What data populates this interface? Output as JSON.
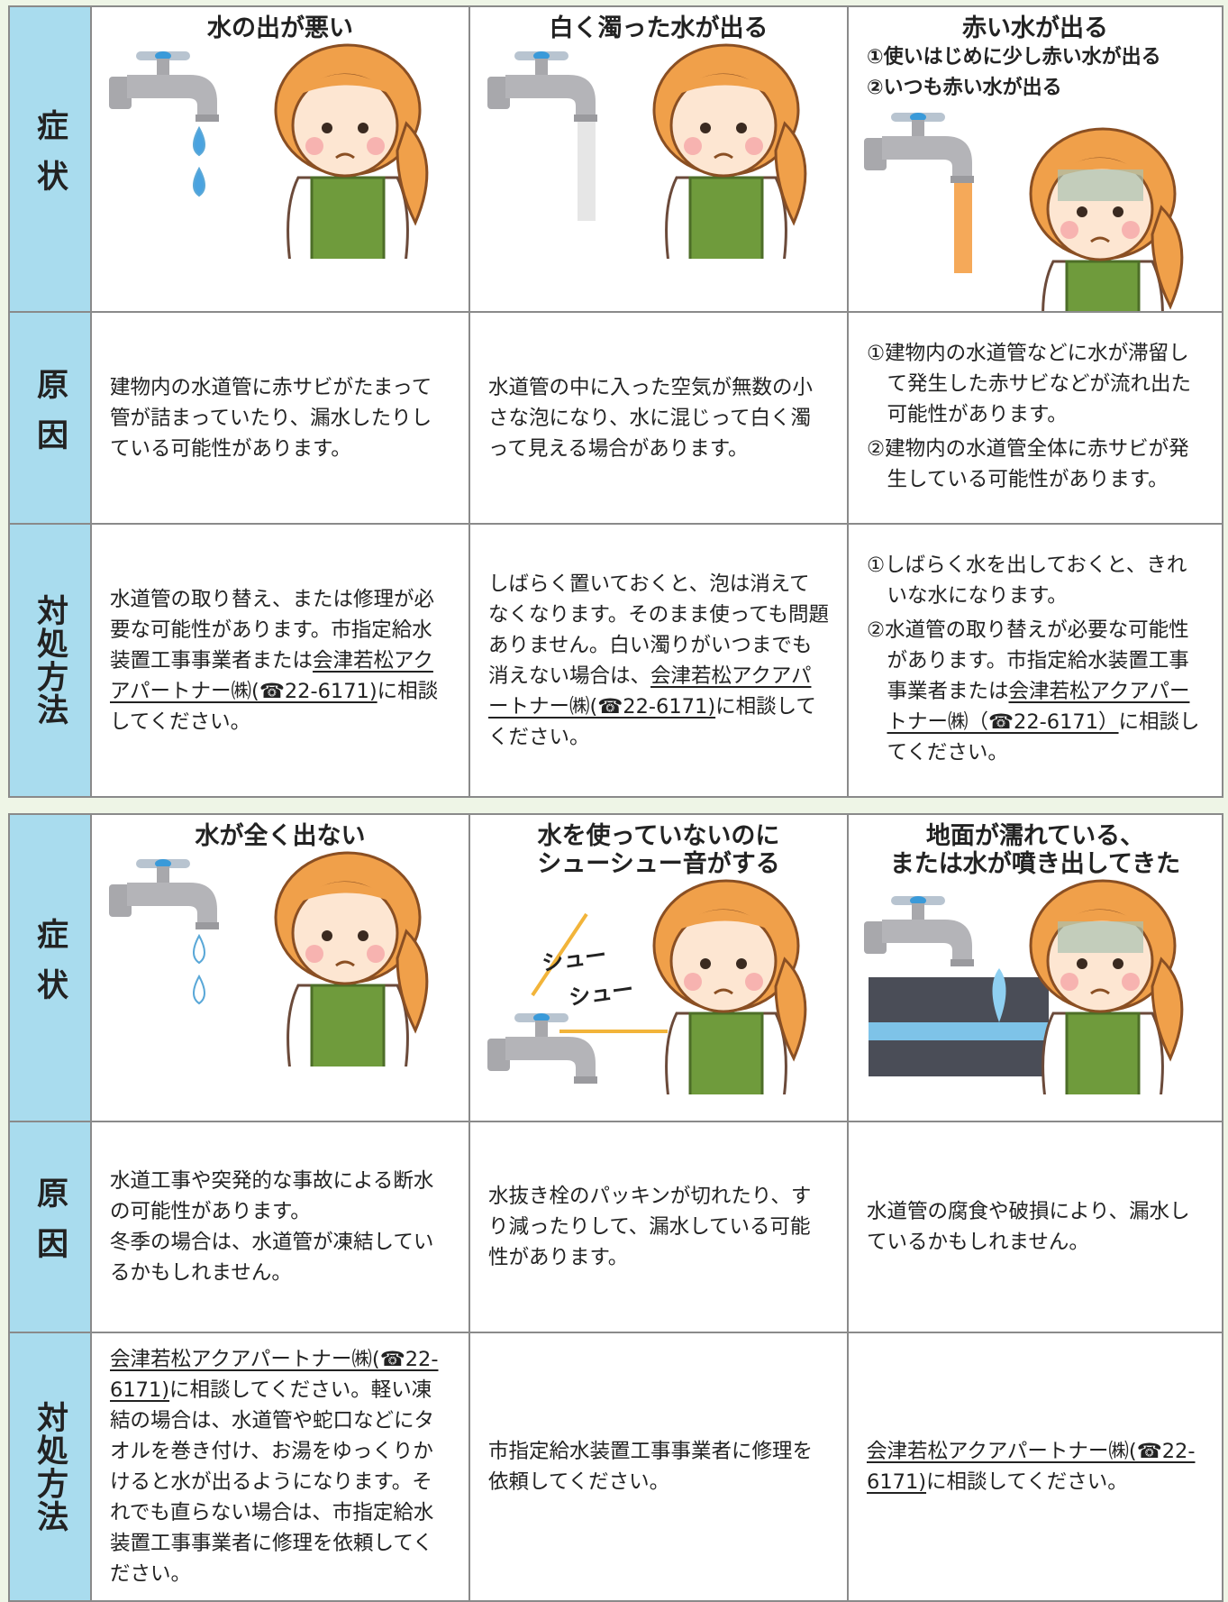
{
  "tables": [
    {
      "row_headers": [
        "症状",
        "原因",
        "対処方法"
      ],
      "columns": [
        {
          "title": [
            "水の出が悪い"
          ],
          "subtitles": [],
          "cause": [
            "建物内の水道管に赤サビがたまって管が詰まっていたり、漏水したりしている可能性があります。"
          ],
          "remedy": [
            [
              {
                "text": "水道管の取り替え、または修理が必要な可能性があります。市指定給水装置工事事業者または"
              },
              {
                "text": "会津若松アクアパートナー㈱(☎22-6171)",
                "underline": true
              },
              {
                "text": "に相談してください。"
              }
            ]
          ]
        },
        {
          "title": [
            "白く濁った水が出る"
          ],
          "subtitles": [],
          "cause": [
            "水道管の中に入った空気が無数の小さな泡になり、水に混じって白く濁って見える場合があります。"
          ],
          "remedy": [
            [
              {
                "text": "しばらく置いておくと、泡は消えてなくなります。そのまま使っても問題ありません。白い濁りがいつまでも消えない場合は、"
              },
              {
                "text": "会津若松アクアパートナー㈱(☎22-6171)",
                "underline": true
              },
              {
                "text": "に相談してください。"
              }
            ]
          ]
        },
        {
          "title": [
            "赤い水が出る"
          ],
          "subtitles": [
            "①使いはじめに少し赤い水が出る",
            "②いつも赤い水が出る"
          ],
          "cause": [
            "①建物内の水道管などに水が滞留して発生した赤サビなどが流れ出た可能性があります。",
            "②建物内の水道管全体に赤サビが発生している可能性があります。"
          ],
          "remedy": [
            [
              {
                "text": "①しばらく水を出しておくと、きれいな水になります。"
              }
            ],
            [
              {
                "text": "②水道管の取り替えが必要な可能性があります。市指定給水装置工事事業者または"
              },
              {
                "text": "会津若松アクアパートナー㈱（☎22-6171）",
                "underline": true
              },
              {
                "text": "に相談してください。"
              }
            ]
          ]
        }
      ]
    },
    {
      "row_headers": [
        "症状",
        "原因",
        "対処方法"
      ],
      "columns": [
        {
          "title": [
            "水が全く出ない"
          ],
          "subtitles": [],
          "cause": [
            "水道工事や突発的な事故による断水の可能性があります。",
            "冬季の場合は、水道管が凍結しているかもしれません。"
          ],
          "remedy": [
            [
              {
                "text": "会津若松アクアパートナー㈱(☎22-6171)",
                "underline": true
              },
              {
                "text": "に相談してください。軽い凍結の場合は、水道管や蛇口などにタオルを巻き付け、お湯をゆっくりかけると水が出るようになります。それでも直らない場合は、市指定給水装置工事事業者に修理を依頼してください。"
              }
            ]
          ]
        },
        {
          "title": [
            "水を使っていないのに",
            "シューシュー音がする"
          ],
          "subtitles": [],
          "sound_text": [
            "シュー",
            "シュー"
          ],
          "cause": [
            "水抜き栓のパッキンが切れたり、すり減ったりして、漏水している可能性があります。"
          ],
          "remedy": [
            [
              {
                "text": "市指定給水装置工事事業者に修理を依頼してください。"
              }
            ]
          ]
        },
        {
          "title": [
            "地面が濡れている、",
            "または水が噴き出してきた"
          ],
          "subtitles": [],
          "cause": [
            "水道管の腐食や破損により、漏水しているかもしれません。"
          ],
          "remedy": [
            [
              {
                "text": "会津若松アクアパートナー㈱(☎22-6171)",
                "underline": true
              },
              {
                "text": "に相談してください。"
              }
            ]
          ]
        }
      ]
    }
  ]
}
